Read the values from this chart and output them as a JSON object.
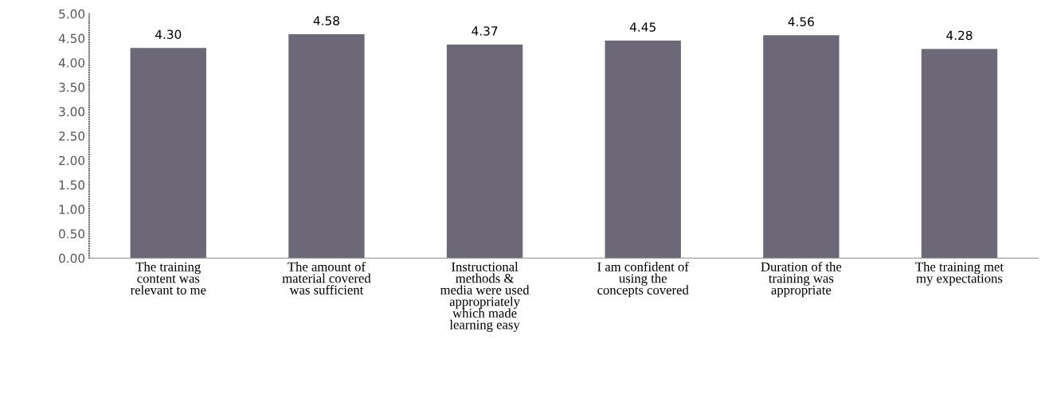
{
  "chart_data": {
    "type": "bar",
    "categories": [
      "The training\ncontent was\nrelevant to me",
      "The amount of\nmaterial covered\nwas sufficient",
      "Instructional\nmethods &\nmedia were used\nappropriately\nwhich made\nlearning easy",
      "I am confident of\nusing the\nconcepts covered",
      "Duration of the\ntraining was\nappropriate",
      "The training met\nmy expectations"
    ],
    "values": [
      4.3,
      4.58,
      4.37,
      4.45,
      4.56,
      4.28
    ],
    "color": "#6d6878",
    "ylim": [
      0,
      5
    ],
    "yticks": [
      {
        "value": 0,
        "label": "0.00"
      },
      {
        "value": 0.5,
        "label": "0.50"
      },
      {
        "value": 1,
        "label": "1.00"
      },
      {
        "value": 1.5,
        "label": "1.50"
      },
      {
        "value": 2,
        "label": "2.00"
      },
      {
        "value": 2.5,
        "label": "2.50"
      },
      {
        "value": 3,
        "label": "3.00"
      },
      {
        "value": 3.5,
        "label": "3.50"
      },
      {
        "value": 4,
        "label": "4.00"
      },
      {
        "value": 4.5,
        "label": "4.50"
      },
      {
        "value": 5,
        "label": "5.00"
      }
    ],
    "value_labels": [
      "4.30",
      "4.58",
      "4.37",
      "4.45",
      "4.56",
      "4.28"
    ],
    "grid": false,
    "legend": false
  }
}
